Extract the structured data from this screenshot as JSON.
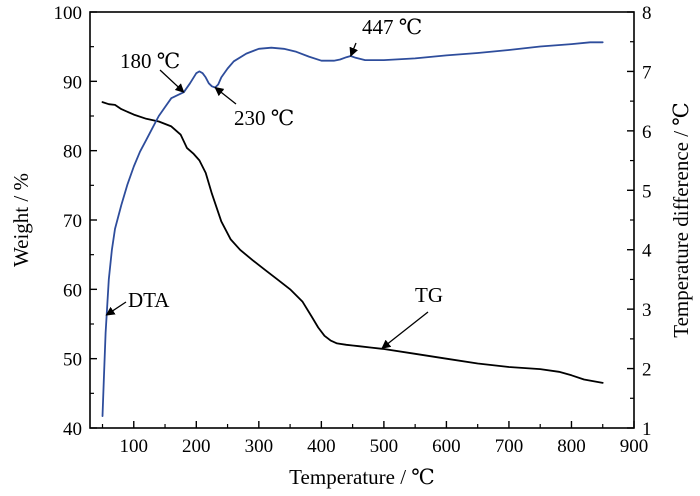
{
  "chart_data": {
    "type": "line",
    "title": "",
    "xlabel": "Temperature / ℃",
    "ylabel_left": "Weight / %",
    "ylabel_right": "Temperature difference / ℃",
    "xlim": [
      30,
      900
    ],
    "ylim_left": [
      40,
      100
    ],
    "ylim_right": [
      1,
      8
    ],
    "xticks": [
      100,
      200,
      300,
      400,
      500,
      600,
      700,
      800,
      900
    ],
    "yticks_left": [
      40,
      50,
      60,
      70,
      80,
      90,
      100
    ],
    "yticks_right": [
      1,
      2,
      3,
      4,
      5,
      6,
      7,
      8
    ],
    "grid": false,
    "series": [
      {
        "name": "TG",
        "axis": "left",
        "color": "#000000",
        "x": [
          50,
          60,
          70,
          80,
          100,
          120,
          140,
          160,
          175,
          185,
          195,
          205,
          215,
          225,
          240,
          255,
          270,
          290,
          310,
          330,
          350,
          370,
          385,
          395,
          405,
          415,
          425,
          440,
          450,
          460,
          480,
          500,
          550,
          600,
          650,
          700,
          750,
          780,
          800,
          820,
          850
        ],
        "y": [
          87.0,
          86.7,
          86.6,
          86.0,
          85.2,
          84.6,
          84.2,
          83.5,
          82.3,
          80.4,
          79.6,
          78.6,
          76.8,
          73.8,
          69.8,
          67.2,
          65.7,
          64.2,
          62.8,
          61.4,
          60.0,
          58.2,
          56.0,
          54.5,
          53.3,
          52.6,
          52.2,
          52.0,
          51.9,
          51.8,
          51.6,
          51.4,
          50.7,
          50.0,
          49.3,
          48.8,
          48.5,
          48.1,
          47.6,
          47.0,
          46.5
        ]
      },
      {
        "name": "DTA",
        "axis": "right",
        "color": "#2e4d9c",
        "x": [
          50,
          52,
          55,
          60,
          65,
          70,
          80,
          90,
          100,
          110,
          120,
          130,
          140,
          150,
          160,
          170,
          180,
          190,
          200,
          205,
          210,
          215,
          220,
          225,
          230,
          235,
          240,
          250,
          260,
          280,
          300,
          320,
          340,
          360,
          380,
          400,
          420,
          430,
          440,
          447,
          455,
          470,
          500,
          550,
          600,
          650,
          700,
          750,
          800,
          830,
          850
        ],
        "y": [
          1.2,
          1.8,
          2.6,
          3.5,
          4.0,
          4.35,
          4.75,
          5.1,
          5.4,
          5.65,
          5.85,
          6.05,
          6.25,
          6.4,
          6.55,
          6.6,
          6.65,
          6.8,
          6.97,
          7.0,
          6.97,
          6.9,
          6.8,
          6.75,
          6.73,
          6.78,
          6.9,
          7.05,
          7.17,
          7.3,
          7.38,
          7.4,
          7.38,
          7.33,
          7.25,
          7.18,
          7.18,
          7.2,
          7.24,
          7.26,
          7.23,
          7.19,
          7.19,
          7.22,
          7.27,
          7.31,
          7.36,
          7.42,
          7.46,
          7.49,
          7.49
        ]
      }
    ],
    "annotations": [
      {
        "text": "180 ℃",
        "target_x": 180,
        "target_y": 6.65,
        "axis": "right"
      },
      {
        "text": "230 ℃",
        "target_x": 230,
        "target_y": 6.73,
        "axis": "right"
      },
      {
        "text": "447 ℃",
        "target_x": 447,
        "target_y": 7.26,
        "axis": "right"
      },
      {
        "text": "DTA",
        "target_x": 56,
        "target_y": 2.9,
        "axis": "right"
      },
      {
        "text": "TG",
        "target_x": 497,
        "target_y": 51.5,
        "axis": "left"
      }
    ]
  }
}
